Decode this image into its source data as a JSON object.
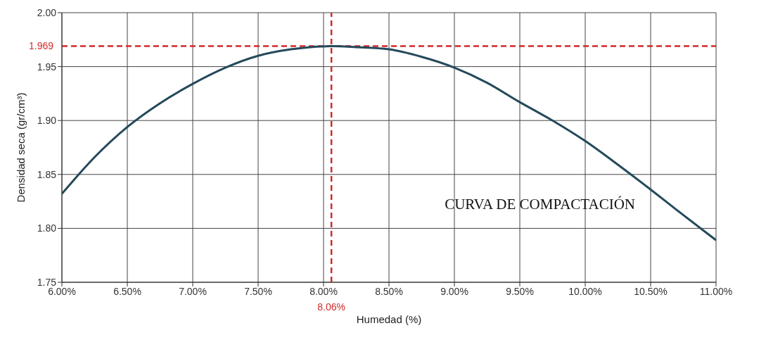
{
  "chart_data": {
    "type": "line",
    "xlabel": "Humedad (%)",
    "ylabel": "Densidad seca (gr/cm³)",
    "x": [
      6.0,
      6.25,
      6.5,
      6.75,
      7.0,
      7.25,
      7.5,
      7.75,
      7.9,
      8.06,
      8.25,
      8.5,
      8.75,
      9.0,
      9.25,
      9.5,
      9.75,
      10.0,
      10.25,
      10.5,
      10.7,
      11.0
    ],
    "series": [
      {
        "color": "#24495a",
        "values": [
          1.832,
          1.866,
          1.894,
          1.916,
          1.934,
          1.949,
          1.96,
          1.966,
          1.968,
          1.969,
          1.968,
          1.966,
          1.959,
          1.949,
          1.935,
          1.917,
          1.9,
          1.881,
          1.859,
          1.836,
          1.817,
          1.789
        ]
      }
    ],
    "xlim": [
      6.0,
      11.0
    ],
    "xticks": [
      {
        "value": 6.0,
        "label": "6.00%"
      },
      {
        "value": 6.5,
        "label": "6.50%"
      },
      {
        "value": 7.0,
        "label": "7.00%"
      },
      {
        "value": 7.5,
        "label": "7.50%"
      },
      {
        "value": 8.0,
        "label": "8.00%"
      },
      {
        "value": 8.5,
        "label": "8.50%"
      },
      {
        "value": 9.0,
        "label": "9.00%"
      },
      {
        "value": 9.5,
        "label": "9.50%"
      },
      {
        "value": 10.0,
        "label": "10.00%"
      },
      {
        "value": 10.5,
        "label": "10.50%"
      },
      {
        "value": 11.0,
        "label": "11.00%"
      }
    ],
    "ylim": [
      1.75,
      2.0
    ],
    "yticks": [
      {
        "value": 1.75,
        "label": "1.75"
      },
      {
        "value": 1.8,
        "label": "1.80"
      },
      {
        "value": 1.85,
        "label": "1.85"
      },
      {
        "value": 1.9,
        "label": "1.90"
      },
      {
        "value": 1.95,
        "label": "1.95"
      },
      {
        "value": 2.0,
        "label": "2.00"
      }
    ],
    "ref_lines": [
      {
        "axis": "y",
        "value": 1.969,
        "label": "1.969",
        "color": "#d12a2a",
        "line_style": "dashed"
      },
      {
        "axis": "x",
        "value": 8.06,
        "label": "8.06%",
        "color": "#d12a2a",
        "line_style": "dashed"
      }
    ],
    "annotations": [
      "CURVA DE COMPACTACIÓN"
    ],
    "grid": true,
    "marker": "none",
    "line_style": "solid"
  }
}
